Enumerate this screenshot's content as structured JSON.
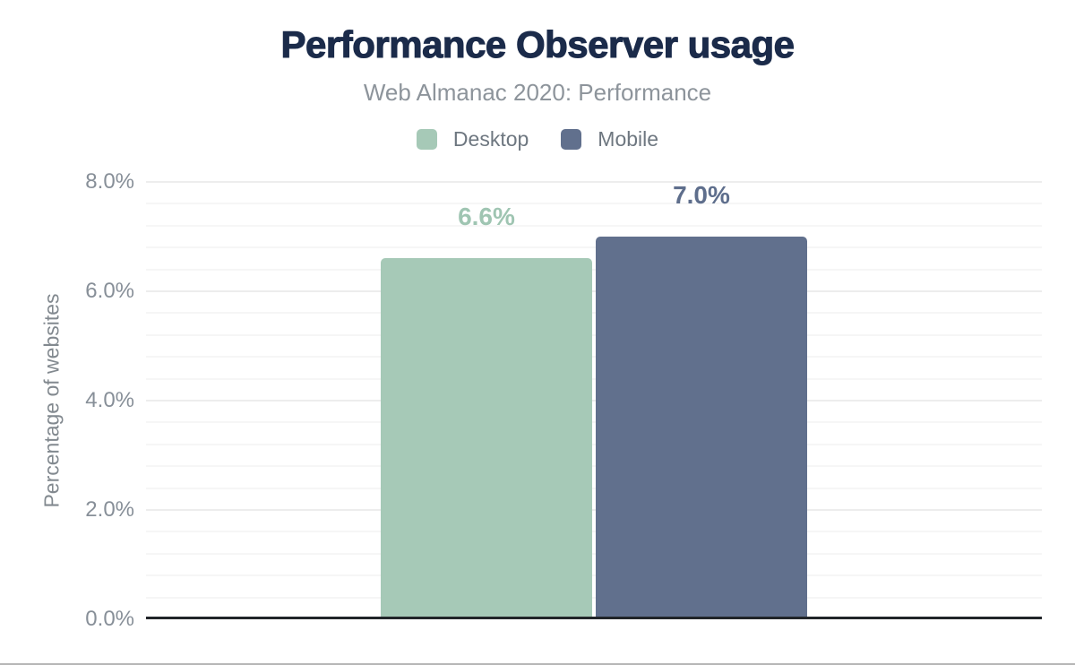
{
  "chart_data": {
    "type": "bar",
    "title": "Performance Observer usage",
    "subtitle": "Web Almanac 2020: Performance",
    "ylabel": "Percentage of websites",
    "xlabel": "",
    "ylim": [
      0,
      8
    ],
    "ytick_step_major": 2,
    "ytick_step_minor": 0.4,
    "ytick_labels": [
      "0.0%",
      "2.0%",
      "4.0%",
      "6.0%",
      "8.0%"
    ],
    "grid": true,
    "legend_position": "top",
    "series": [
      {
        "name": "Desktop",
        "value": 6.6,
        "label": "6.6%",
        "color": "#a6c9b7",
        "label_color": "#9fc5b2"
      },
      {
        "name": "Mobile",
        "value": 7.0,
        "label": "7.0%",
        "color": "#61708d",
        "label_color": "#5e6e8c"
      }
    ],
    "colors": {
      "title": "#1b2b4a",
      "subtitle": "#8d949b",
      "axis_line": "#212529",
      "tick_label": "#878f98"
    }
  }
}
